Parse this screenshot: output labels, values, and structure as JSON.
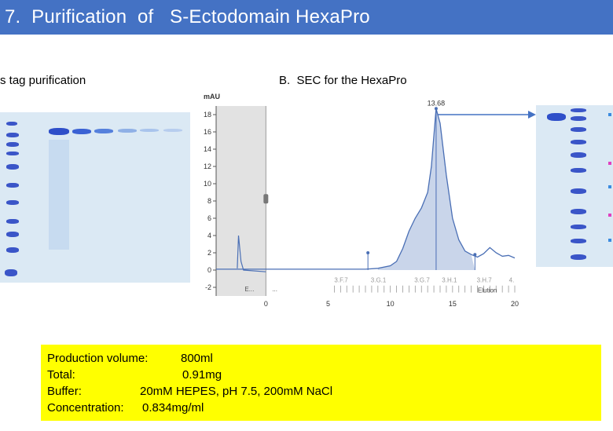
{
  "header": {
    "title": "7.  Purification  of   S-Ectodomain HexaPro"
  },
  "captions": {
    "left": "s tag purification",
    "right": "B.  SEC for the HexaPro"
  },
  "chart_data": {
    "type": "area",
    "title": "",
    "ylabel": "mAU",
    "xlabel": "",
    "ylim": [
      -3,
      19
    ],
    "xlim": [
      -4,
      20
    ],
    "y_ticks": [
      "-2",
      "0",
      "2",
      "4",
      "6",
      "8",
      "10",
      "12",
      "14",
      "16",
      "18"
    ],
    "x_ticks": [
      "0",
      "5",
      "10",
      "15",
      "20"
    ],
    "peak_label": "13.68",
    "fraction_labels": [
      "3.F.7",
      "3.G.1",
      "3.G.7",
      "3.H.1",
      "3.H.7",
      "4."
    ],
    "elution_label": "Elution",
    "truncated_labels": [
      "E...",
      "..."
    ],
    "series": [
      {
        "x": [
          -4,
          0,
          2,
          4,
          6,
          7,
          8,
          9,
          10,
          10.5,
          11,
          11.5,
          12,
          12.5,
          13,
          13.3,
          13.68,
          14,
          14.5,
          15,
          15.5,
          16,
          16.5,
          17,
          17.5,
          18,
          18.5,
          19,
          19.5,
          20
        ],
        "y": [
          0.1,
          0.1,
          0.1,
          0.1,
          0.1,
          0.1,
          0.1,
          0.2,
          0.5,
          1.0,
          2.5,
          4.5,
          6.0,
          7.2,
          9.0,
          12.0,
          18.7,
          17.0,
          11.0,
          6.0,
          3.5,
          2.2,
          1.8,
          1.5,
          1.9,
          2.6,
          2.0,
          1.6,
          1.7,
          1.4
        ]
      }
    ],
    "markers_x": [
      8.2,
      13.68,
      16.8
    ]
  },
  "info": {
    "production_label": "Production volume:",
    "production_value": "800ml",
    "total_label": "Total:",
    "total_value": "0.91mg",
    "buffer_label": "Buffer:",
    "buffer_value": "20mM HEPES, pH 7.5, 200mM NaCl",
    "concentration_label": "Concentration:",
    "concentration_value": "0.834mg/ml"
  }
}
